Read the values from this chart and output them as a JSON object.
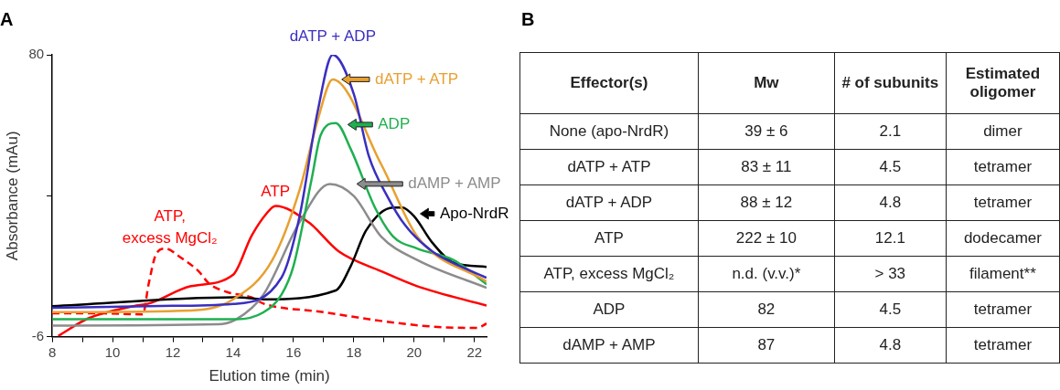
{
  "chart_data": [
    {
      "type": "line",
      "title": "A",
      "xlabel": "Elution time (min)",
      "ylabel": "Absorbance (mAu)",
      "marker": "none",
      "grid": false,
      "legend": "top right",
      "xlim": [
        8,
        22.4
      ],
      "ylim": [
        -6,
        80
      ],
      "xticks": [
        8,
        {
          "value": 9,
          "label": null
        },
        10,
        {
          "value": 11,
          "label": null
        },
        12,
        {
          "value": 13,
          "label": null
        },
        14,
        {
          "value": 15,
          "label": null
        },
        16,
        {
          "value": 17,
          "label": null
        },
        18,
        {
          "value": 19,
          "label": null
        },
        20,
        {
          "value": 21,
          "label": null
        },
        22
      ],
      "yticks": [
        -6,
        {
          "value": 37,
          "label": null
        },
        80
      ],
      "series": [
        {
          "name": "dATP + ADP",
          "color": "#3a2fc0",
          "x": [
            8,
            12,
            14,
            15.6,
            16.2,
            16.8,
            17.3,
            18,
            18.5,
            19.1,
            19.7,
            20.6,
            21.5,
            22.4
          ],
          "values": [
            2.8,
            3.4,
            4,
            12,
            30.7,
            62.7,
            80,
            68,
            49,
            37,
            28,
            20,
            15.6,
            12
          ]
        },
        {
          "name": "dATP + ATP",
          "color": "#e8a030",
          "x": [
            8,
            12.6,
            14,
            15.3,
            16.2,
            16.8,
            17.3,
            18.9,
            20.1,
            22.4
          ],
          "values": [
            1.5,
            2,
            5.4,
            17.4,
            38.7,
            60,
            72.5,
            46.7,
            24.6,
            10.8
          ]
        },
        {
          "name": "ADP",
          "color": "#1fb050",
          "x": [
            8,
            14.1,
            15.0,
            15.6,
            16.0,
            16.6,
            16.9,
            17.4,
            17.9,
            18.7,
            19.3,
            20.1,
            21.3,
            22.4
          ],
          "values": [
            -0.7,
            -0.7,
            1.4,
            6.8,
            15.6,
            42,
            55.5,
            59.2,
            51.2,
            33.4,
            24.6,
            20.9,
            17.4,
            10
          ]
        },
        {
          "name": "dAMP + AMP",
          "color": "#8c8c8c",
          "x": [
            8,
            13.5,
            14.1,
            15.0,
            16.2,
            17.2,
            18,
            18.9,
            20.1,
            22.4
          ],
          "values": [
            -2.6,
            -2.2,
            -0.7,
            6.8,
            28.9,
            40.6,
            36.9,
            24.6,
            17.4,
            8.9
          ]
        },
        {
          "name": "Apo-NrdR",
          "color": "#000000",
          "x": [
            8,
            14.1,
            15.0,
            17.4,
            17.9,
            18.4,
            19.3,
            19.6,
            20.0,
            20.6,
            21.3,
            22.4
          ],
          "values": [
            3.3,
            6,
            5.4,
            8.1,
            15.6,
            26.3,
            33.4,
            33.4,
            30.7,
            22.7,
            16.6,
            15.3
          ]
        },
        {
          "name": "ATP",
          "color": "#ff0000",
          "x": [
            8.2,
            9.2,
            10.7,
            11.2,
            12.6,
            14.0,
            14.6,
            15.1,
            15.4,
            16.5,
            17.5,
            18.9,
            20.1,
            22.4
          ],
          "values": [
            -5.8,
            -0.4,
            3.3,
            4.1,
            9.4,
            12.9,
            24.6,
            31.5,
            33.9,
            28.9,
            20,
            14,
            9.4,
            3.5
          ]
        },
        {
          "name": "ATP, excess MgCl₂",
          "color": "#ff0000",
          "line_style": "dashed",
          "x": [
            8,
            9.7,
            11.0,
            11.2,
            11.45,
            11.75,
            12.25,
            12.85,
            13.2,
            13.8,
            14.6,
            15.0,
            17.0,
            18.9,
            20.9,
            22.1,
            22.4
          ],
          "values": [
            1.1,
            1.1,
            0.8,
            10.2,
            19.3,
            20.9,
            18.2,
            14,
            10.2,
            7.6,
            6,
            4.1,
            1.5,
            -1.2,
            -3.1,
            -3.3,
            -2
          ]
        }
      ]
    },
    {
      "type": "other",
      "title": "B",
      "categories": [
        "Effector(s)",
        "Mw",
        "# of subunits",
        "Estimated oligomer"
      ],
      "cell_labels": [
        [
          "None (apo-NrdR)",
          "39 ± 6",
          "2.1",
          "dimer"
        ],
        [
          "dATP + ATP",
          "83 ± 11",
          "4.5",
          "tetramer"
        ],
        [
          "dATP + ADP",
          "88 ± 12",
          "4.8",
          "tetramer"
        ],
        [
          "ATP",
          "222 ± 10",
          "12.1",
          "dodecamer"
        ],
        [
          "ATP, excess MgCl₂",
          "n.d. (v.v.)*",
          "> 33",
          "filament**"
        ],
        [
          "ADP",
          "82",
          "4.5",
          "tetramer"
        ],
        [
          "dAMP + AMP",
          "87",
          "4.8",
          "tetramer"
        ]
      ]
    }
  ]
}
